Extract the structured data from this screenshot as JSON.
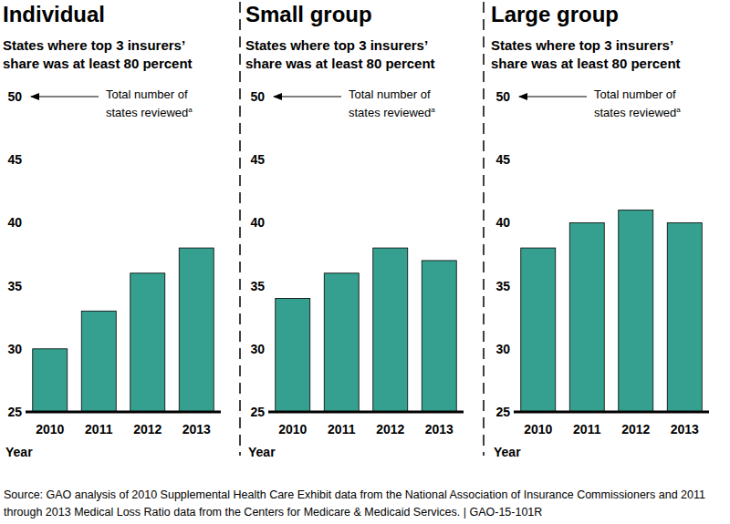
{
  "chart_data": [
    {
      "type": "bar",
      "title": "Individual",
      "subtitle": "States where top 3 insurers’ share was at least 80 percent",
      "annotation": "Total number of states reviewed",
      "annotation_footnote": "a",
      "xlabel": "Year",
      "categories": [
        "2010",
        "2011",
        "2012",
        "2013"
      ],
      "values": [
        30,
        33,
        36,
        38
      ],
      "color": "#35a08f",
      "ylim": [
        25,
        50
      ],
      "yticks": [
        25,
        30,
        35,
        40,
        45,
        50
      ],
      "grid": false
    },
    {
      "type": "bar",
      "title": "Small group",
      "subtitle": "States where top 3 insurers’ share was at least 80 percent",
      "annotation": "Total number of states reviewed",
      "annotation_footnote": "a",
      "xlabel": "Year",
      "categories": [
        "2010",
        "2011",
        "2012",
        "2013"
      ],
      "values": [
        34,
        36,
        38,
        37
      ],
      "color": "#35a08f",
      "ylim": [
        25,
        50
      ],
      "yticks": [
        25,
        30,
        35,
        40,
        45,
        50
      ],
      "grid": false
    },
    {
      "type": "bar",
      "title": "Large group",
      "subtitle": "States where top 3 insurers’ share was at least 80 percent",
      "annotation": "Total number of states reviewed",
      "annotation_footnote": "a",
      "xlabel": "Year",
      "categories": [
        "2010",
        "2011",
        "2012",
        "2013"
      ],
      "values": [
        38,
        40,
        41,
        40
      ],
      "color": "#35a08f",
      "ylim": [
        25,
        50
      ],
      "yticks": [
        25,
        30,
        35,
        40,
        45,
        50
      ],
      "grid": false
    }
  ],
  "source": "Source: GAO analysis of 2010 Supplemental Health Care Exhibit data from the National Association of Insurance Commissioners and 2011 through 2013 Medical Loss Ratio data from the Centers for Medicare & Medicaid Services.  |  GAO-15-101R"
}
